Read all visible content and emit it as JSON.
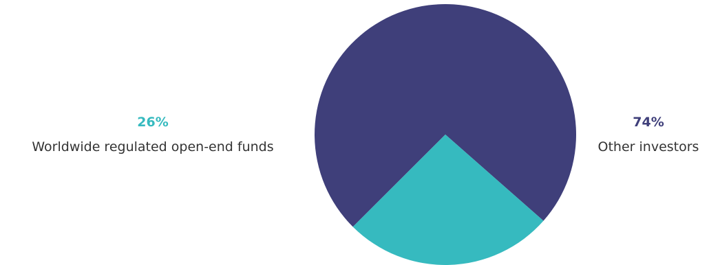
{
  "chart_data": {
    "type": "pie",
    "title": "",
    "start_angle_deg": 135,
    "direction": "clockwise",
    "slices": [
      {
        "label": "Other investors",
        "value": 74,
        "value_label": "74%",
        "color": "#3f3f7a",
        "label_side": "right"
      },
      {
        "label": "Worldwide regulated open-end funds",
        "value": 26,
        "value_label": "26%",
        "color": "#36babf",
        "label_side": "left"
      }
    ],
    "label_text_color": "#333333"
  }
}
